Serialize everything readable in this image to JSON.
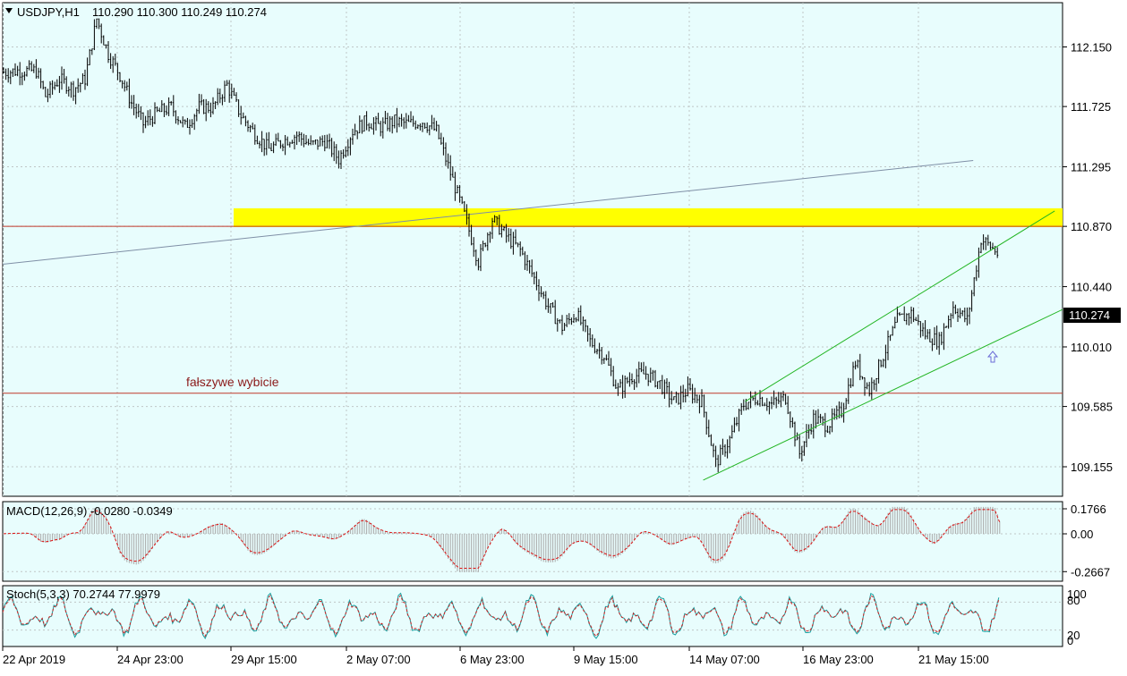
{
  "colors": {
    "background": "#e8fdfd",
    "candle": "#000000",
    "grid": "#bfc6c6",
    "red_line": "#c0392b",
    "trend": "#7f8fa6",
    "channel": "#22b522",
    "zone": "#ffff00",
    "macd_hist": "#a9a9a9",
    "macd_signal": "#dd1111",
    "stoch_main": "#1aa1a1",
    "stoch_signal": "#cc2222"
  },
  "header": {
    "symbol": "USDJPY,H1",
    "ohlc": "110.290 110.300 110.249 110.274"
  },
  "annotation": {
    "text": "fałszywe wybicie"
  },
  "current_price": "110.274",
  "price_axis": [
    "112.150",
    "111.725",
    "111.295",
    "110.870",
    "110.440",
    "110.010",
    "109.585",
    "109.155"
  ],
  "macd": {
    "label": "MACD(12,26,9) -0.0280 -0.0349",
    "axis": [
      "0.1766",
      "0.00",
      "-0.2667"
    ]
  },
  "stoch": {
    "label": "Stoch(5,3,3) 70.2744 77.9979",
    "axis": [
      "100",
      "80",
      "20",
      "0"
    ]
  },
  "time_axis": [
    "22 Apr 2019",
    "24 Apr 23:00",
    "29 Apr 15:00",
    "2 May 07:00",
    "6 May 23:00",
    "9 May 15:00",
    "14 May 07:00",
    "16 May 23:00",
    "21 May 15:00"
  ],
  "chart_data": {
    "type": "candlestick",
    "symbol": "USDJPY",
    "timeframe": "H1",
    "ylim": [
      109.0,
      112.45
    ],
    "red_levels": [
      110.87,
      109.68
    ],
    "zone": [
      110.93,
      111.07
    ],
    "series": {
      "close_path": [
        [
          0,
          111.97
        ],
        [
          6,
          111.98
        ],
        [
          14,
          111.98
        ],
        [
          18,
          111.8
        ],
        [
          24,
          111.92
        ],
        [
          30,
          111.85
        ],
        [
          35,
          111.92
        ],
        [
          40,
          112.35
        ],
        [
          45,
          112.1
        ],
        [
          50,
          111.95
        ],
        [
          55,
          111.75
        ],
        [
          60,
          111.6
        ],
        [
          66,
          111.68
        ],
        [
          72,
          111.72
        ],
        [
          78,
          111.58
        ],
        [
          84,
          111.72
        ],
        [
          90,
          111.72
        ],
        [
          96,
          111.88
        ],
        [
          102,
          111.66
        ],
        [
          108,
          111.53
        ],
        [
          114,
          111.42
        ],
        [
          120,
          111.48
        ],
        [
          126,
          111.52
        ],
        [
          132,
          111.45
        ],
        [
          138,
          111.48
        ],
        [
          144,
          111.35
        ],
        [
          150,
          111.55
        ],
        [
          156,
          111.62
        ],
        [
          162,
          111.58
        ],
        [
          168,
          111.62
        ],
        [
          174,
          111.6
        ],
        [
          180,
          111.62
        ],
        [
          186,
          111.55
        ],
        [
          192,
          111.25
        ],
        [
          198,
          110.95
        ],
        [
          204,
          110.62
        ],
        [
          210,
          110.92
        ],
        [
          216,
          110.8
        ],
        [
          222,
          110.7
        ],
        [
          228,
          110.5
        ],
        [
          234,
          110.3
        ],
        [
          240,
          110.15
        ],
        [
          246,
          110.25
        ],
        [
          252,
          110.05
        ],
        [
          258,
          109.95
        ],
        [
          264,
          109.7
        ],
        [
          270,
          109.8
        ],
        [
          276,
          109.82
        ],
        [
          282,
          109.75
        ],
        [
          288,
          109.62
        ],
        [
          294,
          109.7
        ],
        [
          300,
          109.62
        ],
        [
          306,
          109.18
        ],
        [
          312,
          109.35
        ],
        [
          318,
          109.6
        ],
        [
          324,
          109.65
        ],
        [
          330,
          109.6
        ],
        [
          336,
          109.65
        ],
        [
          342,
          109.25
        ],
        [
          348,
          109.5
        ],
        [
          354,
          109.45
        ],
        [
          360,
          109.55
        ],
        [
          366,
          109.9
        ],
        [
          372,
          109.7
        ],
        [
          378,
          109.95
        ],
        [
          384,
          110.2
        ],
        [
          390,
          110.25
        ],
        [
          396,
          110.1
        ],
        [
          402,
          110.05
        ],
        [
          408,
          110.3
        ],
        [
          414,
          110.2
        ],
        [
          420,
          110.78
        ],
        [
          426,
          110.7
        ],
        [
          432,
          110.55
        ],
        [
          438,
          110.42
        ],
        [
          444,
          110.38
        ],
        [
          450,
          110.3
        ]
      ],
      "channel_upper": [
        [
          319,
          109.62
        ],
        [
          452,
          110.98
        ]
      ],
      "channel_lower": [
        [
          301,
          109.06
        ],
        [
          471,
          110.4
        ]
      ],
      "trend_line": [
        [
          0,
          110.6
        ],
        [
          417,
          111.34
        ]
      ]
    }
  }
}
